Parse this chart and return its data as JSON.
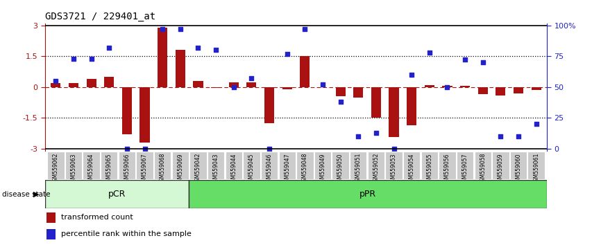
{
  "title": "GDS3721 / 229401_at",
  "samples": [
    "GSM559062",
    "GSM559063",
    "GSM559064",
    "GSM559065",
    "GSM559066",
    "GSM559067",
    "GSM559068",
    "GSM559069",
    "GSM559042",
    "GSM559043",
    "GSM559044",
    "GSM559045",
    "GSM559046",
    "GSM559047",
    "GSM559048",
    "GSM559049",
    "GSM559050",
    "GSM559051",
    "GSM559052",
    "GSM559053",
    "GSM559054",
    "GSM559055",
    "GSM559056",
    "GSM559057",
    "GSM559058",
    "GSM559059",
    "GSM559060",
    "GSM559061"
  ],
  "transformed_count": [
    0.2,
    0.2,
    0.4,
    0.5,
    -2.3,
    -2.7,
    2.9,
    1.8,
    0.3,
    -0.05,
    0.22,
    0.22,
    -1.75,
    -0.1,
    1.5,
    0.0,
    -0.45,
    -0.5,
    -1.5,
    -2.45,
    -1.85,
    0.1,
    0.05,
    0.05,
    -0.35,
    -0.4,
    -0.3,
    -0.15
  ],
  "percentile_rank": [
    55,
    73,
    73,
    82,
    0,
    0,
    97,
    97,
    82,
    80,
    50,
    57,
    0,
    77,
    97,
    52,
    38,
    10,
    13,
    0,
    60,
    78,
    50,
    72,
    70,
    10,
    10,
    20
  ],
  "pCR_count": 8,
  "pCR_label": "pCR",
  "pPR_label": "pPR",
  "bar_color": "#aa1111",
  "dot_color": "#2222cc",
  "yticks_left": [
    -3,
    -1.5,
    0,
    1.5,
    3
  ],
  "yticks_right": [
    0,
    25,
    50,
    75,
    100
  ],
  "ytick_labels_right": [
    "0",
    "25",
    "50",
    "75",
    "100%"
  ],
  "ylim": [
    -3.1,
    3.1
  ],
  "disease_state_label": "disease state",
  "legend_bar_label": "transformed count",
  "legend_dot_label": "percentile rank within the sample",
  "pCR_color": "#d4f7d4",
  "pPR_color": "#66dd66",
  "xtick_bg_color": "#cccccc",
  "fig_bg_color": "#ffffff"
}
